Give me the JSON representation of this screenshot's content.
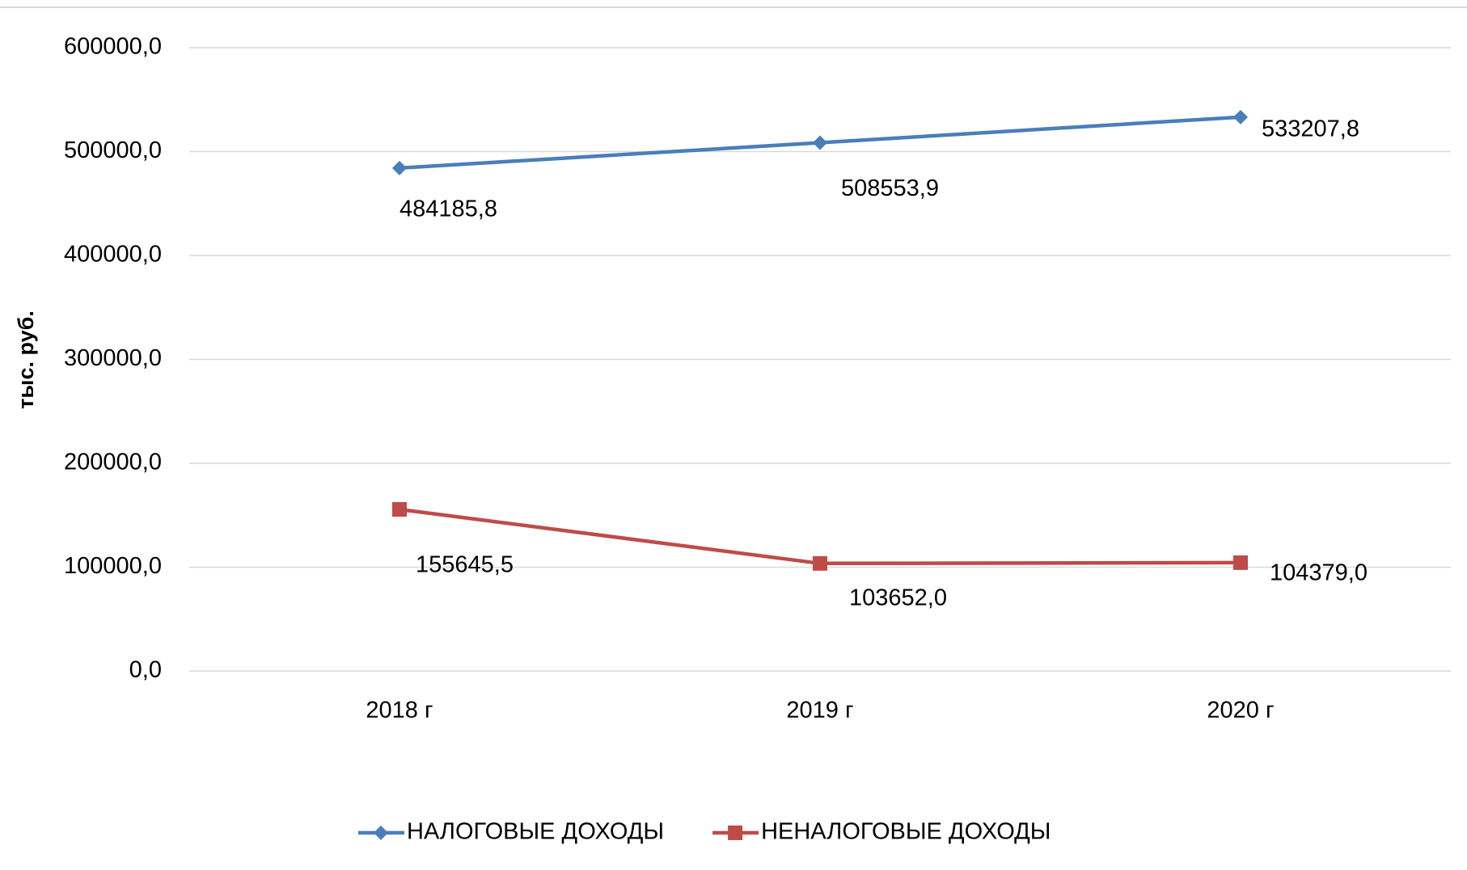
{
  "chart_data": {
    "type": "line",
    "y_label": "тыс. руб.",
    "categories": [
      "2018 г",
      "2019 г",
      "2020 г"
    ],
    "series": [
      {
        "name": "НАЛОГОВЫЕ ДОХОДЫ",
        "color": "#4a7ebb",
        "marker": "diamond",
        "values": [
          484185.8,
          508553.9,
          533207.8
        ],
        "value_labels": [
          "484185,8",
          "508553,9",
          "533207,8"
        ]
      },
      {
        "name": "НЕНАЛОГОВЫЕ ДОХОДЫ",
        "color": "#be4b48",
        "marker": "square",
        "values": [
          155645.5,
          103652.0,
          104379.0
        ],
        "value_labels": [
          "155645,5",
          "103652,0",
          "104379,0"
        ]
      }
    ],
    "ylim": [
      0,
      600000
    ],
    "yticks": [
      {
        "value": 0,
        "label": "0,0"
      },
      {
        "value": 100000,
        "label": "100000,0"
      },
      {
        "value": 200000,
        "label": "200000,0"
      },
      {
        "value": 300000,
        "label": "300000,0"
      },
      {
        "value": 400000,
        "label": "400000,0"
      },
      {
        "value": 500000,
        "label": "500000,0"
      },
      {
        "value": 600000,
        "label": "600000,0"
      }
    ],
    "grid": true,
    "legend": "bottom"
  }
}
